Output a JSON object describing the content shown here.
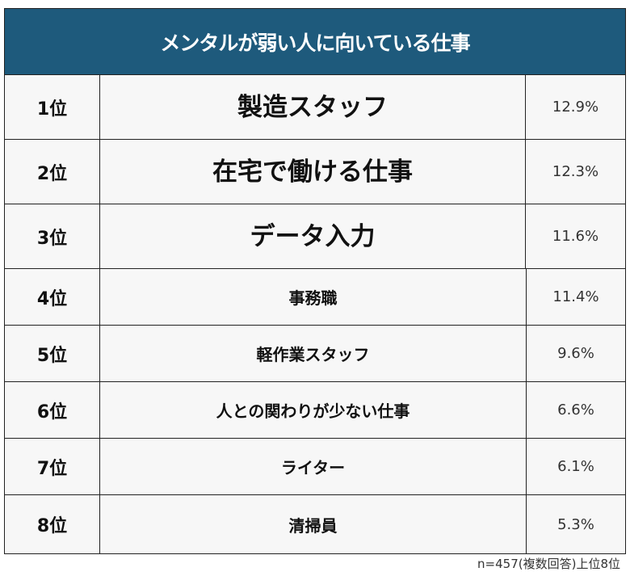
{
  "title": "メンタルが弱い人に向いている仕事",
  "header_color": "#1e5a7c",
  "rows": [
    {
      "rank": "1位",
      "job": "製造スタッフ",
      "percent": "12.9%"
    },
    {
      "rank": "2位",
      "job": "在宅で働ける仕事",
      "percent": "12.3%"
    },
    {
      "rank": "3位",
      "job": "データ入力",
      "percent": "11.6%"
    },
    {
      "rank": "4位",
      "job": "事務職",
      "percent": "11.4%"
    },
    {
      "rank": "5位",
      "job": "軽作業スタッフ",
      "percent": "9.6%"
    },
    {
      "rank": "6位",
      "job": "人との関わりが少ない仕事",
      "percent": "6.6%"
    },
    {
      "rank": "7位",
      "job": "ライター",
      "percent": "6.1%"
    },
    {
      "rank": "8位",
      "job": "清掃員",
      "percent": "5.3%"
    }
  ],
  "footnote": "n=457(複数回答)上位8位"
}
